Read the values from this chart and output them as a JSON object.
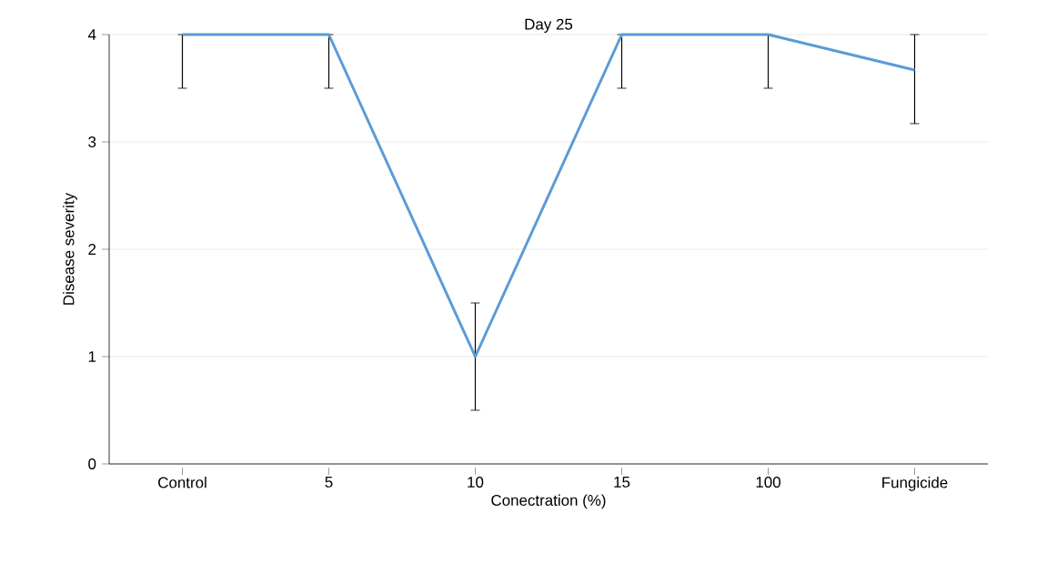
{
  "chart_data": {
    "type": "line",
    "title": "Day 25",
    "xlabel": "Conectration (%)",
    "ylabel": "Disease severity",
    "categories": [
      "Control",
      "5",
      "10",
      "15",
      "100",
      "Fungicide"
    ],
    "series": [
      {
        "color": "#5b9bd5",
        "values": [
          4,
          4,
          1,
          4,
          4,
          3.67
        ],
        "errors": [
          [
            3.5,
            4
          ],
          [
            3.5,
            4
          ],
          [
            0.5,
            1.5
          ],
          [
            3.5,
            4
          ],
          [
            3.5,
            4
          ],
          [
            3.17,
            4
          ]
        ]
      }
    ],
    "ylim": [
      0,
      4
    ],
    "yticks": [
      0,
      1,
      2,
      3,
      4
    ],
    "grid": "y",
    "marker": "none",
    "line_style": "solid"
  }
}
